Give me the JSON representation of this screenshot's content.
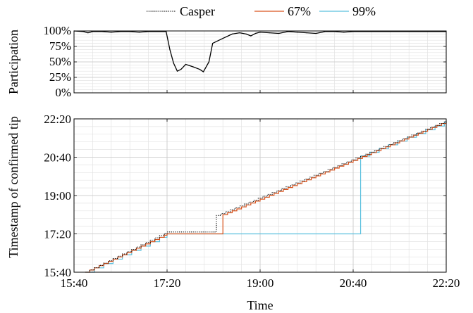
{
  "legend": [
    {
      "name": "Casper",
      "color": "#000000",
      "dash": "dotted"
    },
    {
      "name": "67%",
      "color": "#d9541e",
      "dash": "solid"
    },
    {
      "name": "99%",
      "color": "#5bc0de",
      "dash": "solid"
    }
  ],
  "chart_data": [
    {
      "type": "line",
      "title": "",
      "xlabel": "",
      "ylabel": "Participation",
      "xlim": [
        "15:40",
        "22:20"
      ],
      "ylim": [
        0,
        100
      ],
      "yticks": [
        "0%",
        "25%",
        "50%",
        "75%",
        "100%"
      ],
      "grid": true,
      "series": [
        {
          "name": "",
          "color": "#000000",
          "points": [
            [
              "15:40",
              100
            ],
            [
              "15:50",
              99
            ],
            [
              "15:55",
              97
            ],
            [
              "16:00",
              99
            ],
            [
              "16:10",
              99
            ],
            [
              "16:20",
              98
            ],
            [
              "16:30",
              99
            ],
            [
              "16:40",
              99
            ],
            [
              "16:50",
              98
            ],
            [
              "17:00",
              99
            ],
            [
              "17:10",
              99
            ],
            [
              "17:19",
              99
            ],
            [
              "17:23",
              70
            ],
            [
              "17:27",
              48
            ],
            [
              "17:31",
              35
            ],
            [
              "17:35",
              38
            ],
            [
              "17:40",
              46
            ],
            [
              "17:48",
              42
            ],
            [
              "17:55",
              38
            ],
            [
              "17:59",
              34
            ],
            [
              "18:05",
              50
            ],
            [
              "18:09",
              80
            ],
            [
              "18:20",
              88
            ],
            [
              "18:30",
              95
            ],
            [
              "18:38",
              97
            ],
            [
              "18:45",
              95
            ],
            [
              "18:50",
              92
            ],
            [
              "18:55",
              96
            ],
            [
              "19:00",
              98
            ],
            [
              "19:10",
              97
            ],
            [
              "19:20",
              96
            ],
            [
              "19:30",
              99
            ],
            [
              "19:40",
              98
            ],
            [
              "19:50",
              97
            ],
            [
              "20:00",
              96
            ],
            [
              "20:10",
              99
            ],
            [
              "20:20",
              99
            ],
            [
              "20:30",
              98
            ],
            [
              "20:40",
              99
            ],
            [
              "20:50",
              99
            ],
            [
              "21:00",
              99
            ],
            [
              "21:20",
              99
            ],
            [
              "21:40",
              99
            ],
            [
              "22:00",
              99
            ],
            [
              "22:20",
              99
            ]
          ]
        }
      ]
    },
    {
      "type": "line",
      "title": "",
      "xlabel": "Time",
      "ylabel": "Timestamp of confirmed tip",
      "xlim": [
        "15:40",
        "22:20"
      ],
      "ylim": [
        "15:40",
        "22:20"
      ],
      "xticks": [
        "15:40",
        "17:20",
        "19:00",
        "20:40",
        "22:20"
      ],
      "yticks": [
        "15:40",
        "17:20",
        "19:00",
        "20:40",
        "22:20"
      ],
      "grid": true,
      "series": [
        {
          "name": "Casper",
          "color": "#000000",
          "step": "5 min",
          "points": [
            [
              "15:52",
              "15:40"
            ],
            [
              "17:20",
              "17:25"
            ],
            [
              "18:13",
              "17:25"
            ],
            [
              "18:13",
              "18:08"
            ],
            [
              "22:20",
              "22:15"
            ]
          ]
        },
        {
          "name": "67%",
          "color": "#d9541e",
          "step": "5 min",
          "points": [
            [
              "15:52",
              "15:40"
            ],
            [
              "17:20",
              "17:20"
            ],
            [
              "18:20",
              "17:20"
            ],
            [
              "18:20",
              "18:10"
            ],
            [
              "22:20",
              "22:13"
            ]
          ]
        },
        {
          "name": "99%",
          "color": "#5bc0de",
          "step": "10 min",
          "points": [
            [
              "15:52",
              "15:40"
            ],
            [
              "17:20",
              "17:20"
            ],
            [
              "20:48",
              "17:20"
            ],
            [
              "20:48",
              "20:43"
            ],
            [
              "22:20",
              "22:13"
            ]
          ]
        }
      ]
    }
  ]
}
